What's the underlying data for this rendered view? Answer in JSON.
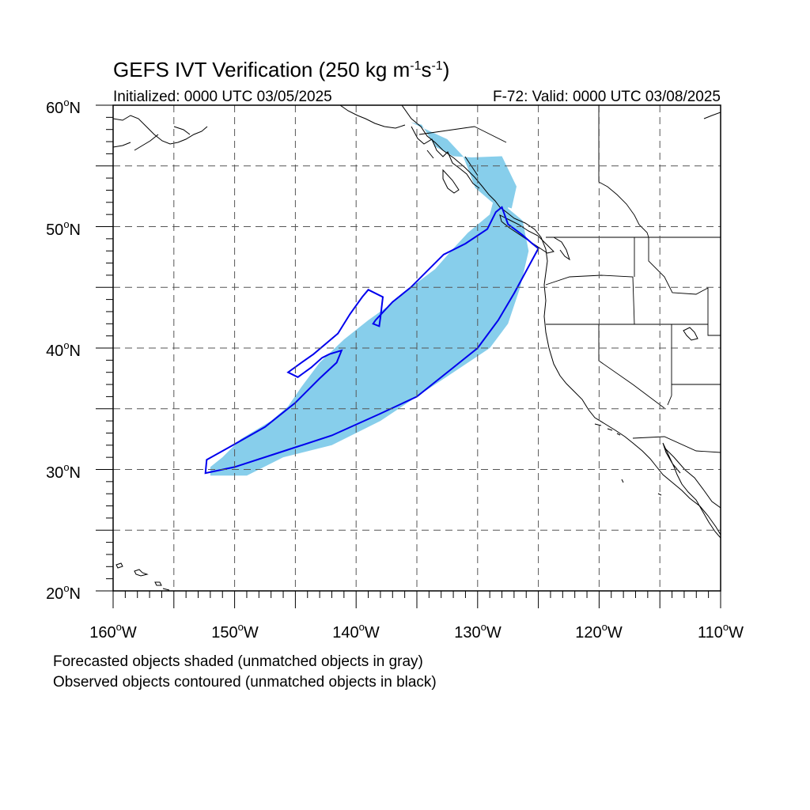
{
  "title": {
    "main": "GEFS IVT Verification (250 kg m",
    "exp1": "-1",
    "mid": "s",
    "exp2": "-1",
    "end": ")"
  },
  "subtitle_left": "Initialized: 0000 UTC 03/05/2025",
  "subtitle_right": "F-72: Valid: 0000 UTC 03/08/2025",
  "axes": {
    "lat_labels": [
      {
        "deg": "60",
        "sym": "o",
        "hem": "N"
      },
      {
        "deg": "50",
        "sym": "o",
        "hem": "N"
      },
      {
        "deg": "40",
        "sym": "o",
        "hem": "N"
      },
      {
        "deg": "30",
        "sym": "o",
        "hem": "N"
      },
      {
        "deg": "20",
        "sym": "o",
        "hem": "N"
      }
    ],
    "lon_labels": [
      {
        "deg": "160",
        "sym": "o",
        "hem": "W"
      },
      {
        "deg": "150",
        "sym": "o",
        "hem": "W"
      },
      {
        "deg": "140",
        "sym": "o",
        "hem": "W"
      },
      {
        "deg": "130",
        "sym": "o",
        "hem": "W"
      },
      {
        "deg": "120",
        "sym": "o",
        "hem": "W"
      },
      {
        "deg": "110",
        "sym": "o",
        "hem": "W"
      }
    ],
    "lat_range": [
      20,
      60
    ],
    "lon_range": [
      -160,
      -110
    ]
  },
  "footnotes": [
    "Forecasted objects shaded (unmatched objects in gray)",
    "Observed objects contoured (unmatched objects in black)"
  ],
  "colors": {
    "forecast_fill": "#87ceeb",
    "observed_contour": "#0000ee",
    "grid": "#555555",
    "coast": "#000000"
  },
  "objects": {
    "forecast": {
      "name": "forecast-object",
      "outline_lonlat": [
        [
          -152.0,
          29.5
        ],
        [
          -149.0,
          29.5
        ],
        [
          -146.0,
          31.0
        ],
        [
          -142.0,
          32.0
        ],
        [
          -138.0,
          34.0
        ],
        [
          -135.0,
          36.0
        ],
        [
          -132.0,
          38.0
        ],
        [
          -129.0,
          40.0
        ],
        [
          -127.5,
          42.0
        ],
        [
          -126.5,
          45.0
        ],
        [
          -125.8,
          48.0
        ],
        [
          -126.3,
          50.5
        ],
        [
          -127.5,
          51.5
        ],
        [
          -127.4,
          54.4
        ],
        [
          -128.1,
          54.4
        ],
        [
          -129.0,
          51.0
        ],
        [
          -130.8,
          49.5
        ],
        [
          -132.0,
          48.2
        ],
        [
          -133.5,
          46.5
        ],
        [
          -135.5,
          45.0
        ],
        [
          -137.3,
          43.5
        ],
        [
          -139.0,
          42.3
        ],
        [
          -141.0,
          40.7
        ],
        [
          -143.0,
          38.8
        ],
        [
          -144.5,
          36.8
        ],
        [
          -145.6,
          35.2
        ],
        [
          -147.0,
          34.0
        ],
        [
          -149.5,
          32.5
        ],
        [
          -151.0,
          31.0
        ],
        [
          -152.0,
          30.2
        ]
      ],
      "upper_lonlat": [
        [
          -130.5,
          55.7
        ],
        [
          -128.0,
          55.8
        ],
        [
          -126.8,
          53.3
        ],
        [
          -127.2,
          51.5
        ],
        [
          -128.8,
          52.0
        ],
        [
          -130.2,
          53.2
        ],
        [
          -130.8,
          54.8
        ],
        [
          -131.2,
          55.8
        ],
        [
          -132.5,
          57.2
        ],
        [
          -133.8,
          57.8
        ],
        [
          -135.5,
          58.6
        ],
        [
          -134.6,
          58.4
        ],
        [
          -133.5,
          56.6
        ],
        [
          -132.0,
          55.8
        ]
      ]
    },
    "observed": {
      "name": "observed-object",
      "outline_lonlat": [
        [
          -152.4,
          29.7
        ],
        [
          -150.0,
          30.2
        ],
        [
          -146.0,
          31.5
        ],
        [
          -142.0,
          32.8
        ],
        [
          -138.0,
          34.6
        ],
        [
          -135.0,
          36.0
        ],
        [
          -132.0,
          38.4
        ],
        [
          -130.0,
          40.0
        ],
        [
          -128.3,
          42.3
        ],
        [
          -127.0,
          44.5
        ],
        [
          -125.0,
          48.2
        ],
        [
          -125.5,
          48.6
        ],
        [
          -126.3,
          49.3
        ],
        [
          -127.5,
          50.2
        ],
        [
          -128.0,
          51.6
        ],
        [
          -128.5,
          51.2
        ],
        [
          -129.2,
          49.8
        ],
        [
          -131.0,
          48.6
        ],
        [
          -132.8,
          47.7
        ],
        [
          -134.0,
          46.5
        ],
        [
          -135.5,
          45.0
        ],
        [
          -137.0,
          43.8
        ],
        [
          -138.4,
          42.3
        ],
        [
          -138.6,
          42.0
        ],
        [
          -138.1,
          41.8
        ],
        [
          -138.0,
          42.5
        ],
        [
          -137.8,
          44.2
        ],
        [
          -139.0,
          44.8
        ],
        [
          -139.5,
          44.2
        ],
        [
          -140.5,
          42.8
        ],
        [
          -141.5,
          41.2
        ],
        [
          -143.5,
          39.5
        ],
        [
          -144.5,
          38.8
        ],
        [
          -145.6,
          38.0
        ],
        [
          -144.8,
          37.6
        ],
        [
          -143.7,
          38.4
        ],
        [
          -142.8,
          39.2
        ],
        [
          -142.2,
          39.5
        ],
        [
          -141.2,
          39.8
        ],
        [
          -141.6,
          38.8
        ],
        [
          -143.0,
          37.5
        ],
        [
          -145.0,
          35.5
        ],
        [
          -147.5,
          33.5
        ],
        [
          -150.5,
          31.8
        ],
        [
          -152.3,
          30.8
        ]
      ]
    }
  }
}
